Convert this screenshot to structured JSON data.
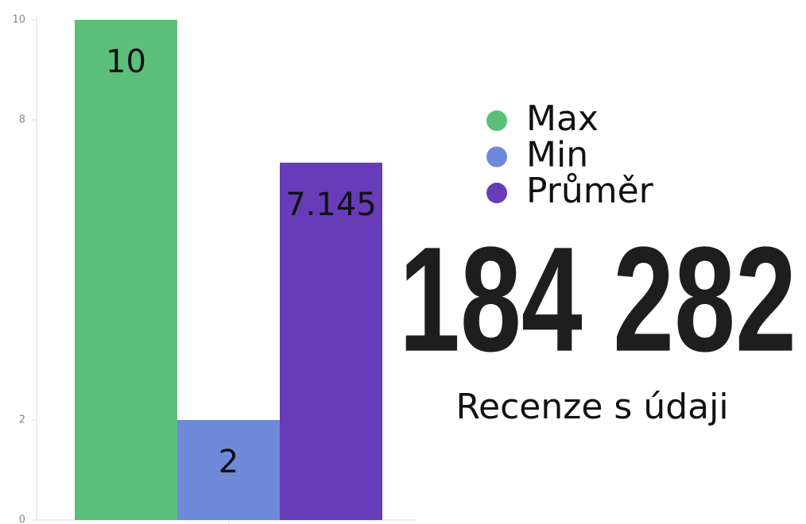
{
  "chart_data": {
    "type": "bar",
    "categories": [
      null
    ],
    "series": [
      {
        "name": "Max",
        "color": "#5bbf79",
        "values": [
          10
        ]
      },
      {
        "name": "Min",
        "color": "#6f89d9",
        "values": [
          2
        ]
      },
      {
        "name": "Průměr",
        "color": "#673cb8",
        "values": [
          7.145
        ]
      }
    ],
    "ylim": [
      0,
      10
    ],
    "yticks": [
      0,
      2,
      8,
      10
    ],
    "legend": "right",
    "kpi": {
      "value": "184 282",
      "label": "Recenze s údaji"
    }
  }
}
